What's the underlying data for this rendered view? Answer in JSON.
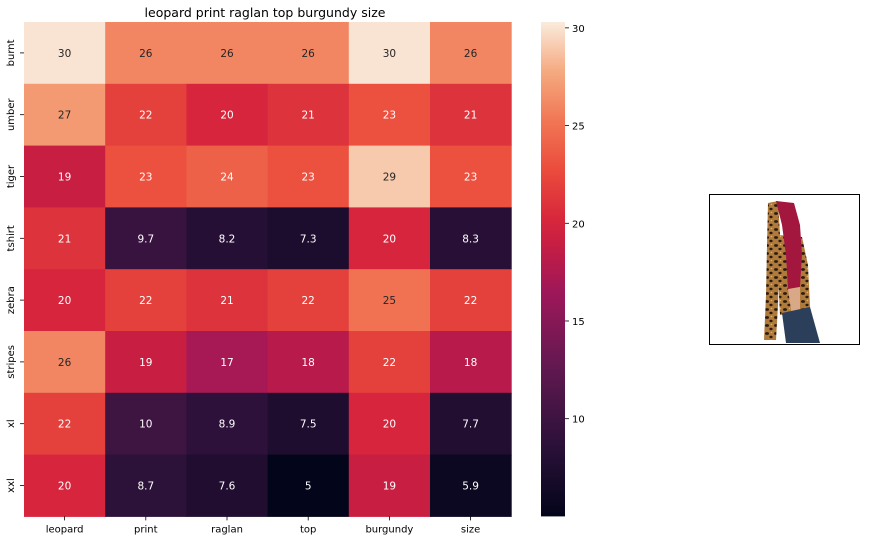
{
  "chart_data": {
    "type": "heatmap",
    "title": "leopard print raglan top burgundy size",
    "x_categories": [
      "leopard",
      "print",
      "raglan",
      "top",
      "burgundy",
      "size"
    ],
    "y_categories": [
      "burnt",
      "umber",
      "tiger",
      "tshirt",
      "zebra",
      "stripes",
      "xl",
      "xxl"
    ],
    "values": [
      [
        30,
        26,
        26,
        26,
        30,
        26
      ],
      [
        27,
        22,
        20,
        21,
        23,
        21
      ],
      [
        19,
        23,
        24,
        23,
        29,
        23
      ],
      [
        21,
        9.7,
        8.2,
        7.3,
        20,
        8.3
      ],
      [
        20,
        22,
        21,
        22,
        25,
        22
      ],
      [
        26,
        19,
        17,
        18,
        22,
        18
      ],
      [
        22,
        10,
        8.9,
        7.5,
        20,
        7.7
      ],
      [
        20,
        8.7,
        7.6,
        5,
        19,
        5.9
      ]
    ],
    "labels": [
      [
        "30",
        "26",
        "26",
        "26",
        "30",
        "26"
      ],
      [
        "27",
        "22",
        "20",
        "21",
        "23",
        "21"
      ],
      [
        "19",
        "23",
        "24",
        "23",
        "29",
        "23"
      ],
      [
        "21",
        "9.7",
        "8.2",
        "7.3",
        "20",
        "8.3"
      ],
      [
        "20",
        "22",
        "21",
        "22",
        "25",
        "22"
      ],
      [
        "26",
        "19",
        "17",
        "18",
        "22",
        "18"
      ],
      [
        "22",
        "10",
        "8.9",
        "7.5",
        "20",
        "7.7"
      ],
      [
        "20",
        "8.7",
        "7.6",
        "5",
        "19",
        "5.9"
      ]
    ],
    "colorbar": {
      "colormap": "rocket",
      "range": [
        5,
        30.3
      ],
      "ticks": [
        10,
        15,
        20,
        25,
        30
      ]
    },
    "grid": false
  },
  "product_image": {
    "icon": "leopard-raglan-top-photo",
    "colors": {
      "sleeve": "#a3173f",
      "leopard_base": "#b07a3a",
      "leopard_spot": "#2a1a10",
      "jeans": "#2c3f5a",
      "skin": "#d9a987"
    }
  }
}
